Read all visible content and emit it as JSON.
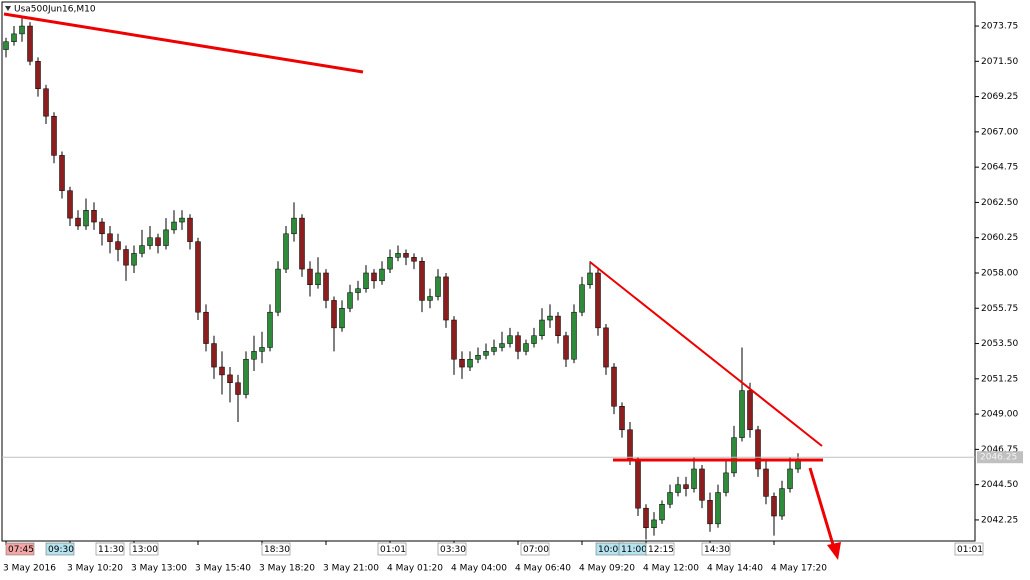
{
  "chart_data": {
    "type": "candlestick",
    "title": "Usa500Jun16,M10",
    "ohlc": [
      [
        2072.25,
        2073.0,
        2071.75,
        2072.75
      ],
      [
        2072.75,
        2073.75,
        2072.5,
        2073.25
      ],
      [
        2073.25,
        2074.25,
        2072.75,
        2073.75
      ],
      [
        2073.75,
        2074.0,
        2071.25,
        2071.5
      ],
      [
        2071.5,
        2071.75,
        2069.25,
        2069.75
      ],
      [
        2069.75,
        2070.0,
        2067.5,
        2068
      ],
      [
        2068,
        2068.25,
        2065,
        2065.5
      ],
      [
        2065.5,
        2065.75,
        2062.75,
        2063.25
      ],
      [
        2063.25,
        2063.5,
        2061.0,
        2061.5
      ],
      [
        2061.5,
        2062.0,
        2060.75,
        2061
      ],
      [
        2061,
        2062.75,
        2060.75,
        2062
      ],
      [
        2062,
        2062.5,
        2060.75,
        2061.25
      ],
      [
        2061.25,
        2061.5,
        2059.75,
        2060.5
      ],
      [
        2060.5,
        2061.0,
        2059.25,
        2060
      ],
      [
        2060,
        2060.5,
        2058.75,
        2059.5
      ],
      [
        2059.5,
        2059.75,
        2057.5,
        2058.5
      ],
      [
        2058.5,
        2059.75,
        2058.0,
        2059.25
      ],
      [
        2059.25,
        2060.75,
        2059.0,
        2059.75
      ],
      [
        2059.75,
        2061.0,
        2059.5,
        2060.25
      ],
      [
        2060.25,
        2060.5,
        2059.25,
        2059.75
      ],
      [
        2059.75,
        2061.5,
        2059.5,
        2060.75
      ],
      [
        2060.75,
        2062.0,
        2060.5,
        2061.25
      ],
      [
        2061.25,
        2062.0,
        2060.75,
        2061.5
      ],
      [
        2061.5,
        2061.75,
        2059.5,
        2060
      ],
      [
        2060,
        2060.25,
        2055.0,
        2055.5
      ],
      [
        2055.5,
        2056.0,
        2053.0,
        2053.5
      ],
      [
        2053.5,
        2054.0,
        2051.25,
        2052
      ],
      [
        2052,
        2053.0,
        2050.25,
        2051.5
      ],
      [
        2051.5,
        2052.0,
        2049.75,
        2051
      ],
      [
        2051,
        2051.5,
        2048.5,
        2050.25
      ],
      [
        2050.25,
        2053.0,
        2050.0,
        2052.5
      ],
      [
        2052.5,
        2054.0,
        2051.75,
        2053
      ],
      [
        2053,
        2054.25,
        2052.25,
        2053.25
      ],
      [
        2053.25,
        2056.0,
        2053.0,
        2055.5
      ],
      [
        2055.5,
        2058.75,
        2055.25,
        2058.25
      ],
      [
        2058.25,
        2061.0,
        2058.0,
        2060.5
      ],
      [
        2060.5,
        2062.5,
        2060.0,
        2061.5
      ],
      [
        2061.5,
        2061.75,
        2057.75,
        2058.25
      ],
      [
        2058.25,
        2058.75,
        2056.5,
        2057.25
      ],
      [
        2057.25,
        2059.0,
        2057.0,
        2058
      ],
      [
        2058,
        2058.25,
        2055.75,
        2056.25
      ],
      [
        2056.25,
        2056.5,
        2053.0,
        2054.5
      ],
      [
        2054.5,
        2056.25,
        2054.25,
        2055.75
      ],
      [
        2055.75,
        2057.25,
        2055.5,
        2056.75
      ],
      [
        2056.75,
        2057.5,
        2056.25,
        2057
      ],
      [
        2057,
        2058.5,
        2056.75,
        2058
      ],
      [
        2058,
        2058.25,
        2057.0,
        2057.5
      ],
      [
        2057.5,
        2058.75,
        2057.25,
        2058.25
      ],
      [
        2058.25,
        2059.5,
        2058.0,
        2059
      ],
      [
        2059,
        2059.75,
        2058.75,
        2059.25
      ],
      [
        2059.25,
        2059.5,
        2058.5,
        2059
      ],
      [
        2059,
        2059.25,
        2058.25,
        2058.75
      ],
      [
        2058.75,
        2059.0,
        2055.5,
        2056.25
      ],
      [
        2056.25,
        2057.0,
        2055.75,
        2056.5
      ],
      [
        2056.5,
        2058.25,
        2056.25,
        2057.75
      ],
      [
        2057.75,
        2058.0,
        2054.5,
        2055
      ],
      [
        2055,
        2055.25,
        2051.5,
        2052.5
      ],
      [
        2052.5,
        2053.0,
        2051.25,
        2052
      ],
      [
        2052,
        2053.0,
        2051.75,
        2052.5
      ],
      [
        2052.5,
        2053.25,
        2052.25,
        2052.75
      ],
      [
        2052.75,
        2053.5,
        2052.5,
        2053
      ],
      [
        2053,
        2053.75,
        2052.75,
        2053.25
      ],
      [
        2053.25,
        2054.25,
        2053.0,
        2053.5
      ],
      [
        2053.5,
        2054.5,
        2053.25,
        2054
      ],
      [
        2054,
        2054.25,
        2052.5,
        2053
      ],
      [
        2053,
        2053.75,
        2052.75,
        2053.5
      ],
      [
        2053.5,
        2054.5,
        2053.25,
        2054
      ],
      [
        2054,
        2055.75,
        2053.75,
        2055
      ],
      [
        2055,
        2056.0,
        2054.5,
        2055.25
      ],
      [
        2055.25,
        2055.5,
        2053.5,
        2054
      ],
      [
        2054,
        2054.25,
        2052.0,
        2052.5
      ],
      [
        2052.5,
        2056.0,
        2052.25,
        2055.5
      ],
      [
        2055.5,
        2057.75,
        2055.25,
        2057.25
      ],
      [
        2057.25,
        2058.75,
        2057.0,
        2058
      ],
      [
        2058,
        2058.25,
        2054.0,
        2054.5
      ],
      [
        2054.5,
        2054.75,
        2051.5,
        2052
      ],
      [
        2052,
        2052.25,
        2049.0,
        2049.5
      ],
      [
        2049.5,
        2049.75,
        2047.5,
        2048
      ],
      [
        2048,
        2048.5,
        2045.75,
        2046
      ],
      [
        2046,
        2046.25,
        2042.5,
        2043
      ],
      [
        2043,
        2043.25,
        2041.0,
        2041.75
      ],
      [
        2041.75,
        2042.75,
        2041.25,
        2042.25
      ],
      [
        2042.25,
        2043.5,
        2042.0,
        2043.25
      ],
      [
        2043.25,
        2044.5,
        2043.0,
        2044
      ],
      [
        2044,
        2045.0,
        2043.75,
        2044.5
      ],
      [
        2044.5,
        2045.0,
        2043.75,
        2044.25
      ],
      [
        2044.25,
        2046.25,
        2044.0,
        2045.5
      ],
      [
        2045.5,
        2045.75,
        2043.0,
        2043.5
      ],
      [
        2043.5,
        2044.0,
        2041.5,
        2042
      ],
      [
        2042,
        2044.5,
        2041.75,
        2044
      ],
      [
        2044,
        2046.0,
        2043.75,
        2045.25
      ],
      [
        2045.25,
        2048.25,
        2045.0,
        2047.5
      ],
      [
        2047.5,
        2053.25,
        2047.25,
        2050.5
      ],
      [
        2050.5,
        2051.0,
        2047.5,
        2048
      ],
      [
        2048,
        2048.25,
        2045.0,
        2045.5
      ],
      [
        2045.5,
        2046.0,
        2043.25,
        2043.75
      ],
      [
        2043.75,
        2044.0,
        2041.25,
        2042.5
      ],
      [
        2042.5,
        2044.75,
        2042.25,
        2044.25
      ],
      [
        2044.25,
        2046.25,
        2044.0,
        2045.5
      ],
      [
        2045.5,
        2046.5,
        2045.25,
        2046
      ]
    ],
    "up_color": "#2e8b3a",
    "down_color": "#8b1e1e",
    "ylim": [
      2040.97,
      2075.22
    ],
    "yticks": [
      2073.75,
      {
        "value": 2071.5,
        "label": "2071.50"
      },
      2069.25,
      {
        "value": 2067,
        "label": "2067.00"
      },
      2064.75,
      {
        "value": 2062.5,
        "label": "2062.50"
      },
      2060.25,
      {
        "value": 2058,
        "label": "2058.00"
      },
      2055.75,
      {
        "value": 2053.5,
        "label": "2053.50"
      },
      2051.25,
      {
        "value": 2049,
        "label": "2049.00"
      },
      2046.75,
      {
        "value": 2044.5,
        "label": "2044.50"
      },
      2042.25
    ],
    "xticks": [
      {
        "value": 0,
        "label": "3 May 2016"
      },
      {
        "value": 8,
        "label": "3 May 10:20"
      },
      {
        "value": 16,
        "label": "3 May 13:00"
      },
      {
        "value": 24,
        "label": "3 May 15:40"
      },
      {
        "value": 32,
        "label": "3 May 18:20"
      },
      {
        "value": 40,
        "label": "3 May 21:00"
      },
      {
        "value": 48,
        "label": "4 May 01:20"
      },
      {
        "value": 56,
        "label": "4 May 04:00"
      },
      {
        "value": 64,
        "label": "4 May 06:40"
      },
      {
        "value": 72,
        "label": "4 May 09:20"
      },
      {
        "value": 80,
        "label": "4 May 12:00"
      },
      {
        "value": 88,
        "label": "4 May 14:40"
      },
      {
        "value": 96,
        "label": "4 May 17:20"
      }
    ],
    "bid": 2046.25,
    "events": [
      {
        "label": "07:45",
        "color": "#f3a6a6"
      },
      {
        "label": "09:30",
        "color": "#b5e3ef"
      },
      {
        "label": "11:30",
        "color": "#ffffff"
      },
      {
        "label": "13:00",
        "color": "#ffffff"
      },
      {
        "label": "18:30",
        "color": "#ffffff"
      },
      {
        "label": "01:01",
        "color": "#ffffff"
      },
      {
        "label": "03:30",
        "color": "#ffffff"
      },
      {
        "label": "07:00",
        "color": "#ffffff"
      },
      {
        "label": "10:00",
        "color": "#b5e3ef"
      },
      {
        "label": "11:00",
        "color": "#b5e3ef"
      },
      {
        "label": "12:15",
        "color": "#ffffff"
      },
      {
        "label": "14:30",
        "color": "#ffffff"
      },
      {
        "label": "01:01",
        "color": "#ffffff"
      }
    ]
  }
}
